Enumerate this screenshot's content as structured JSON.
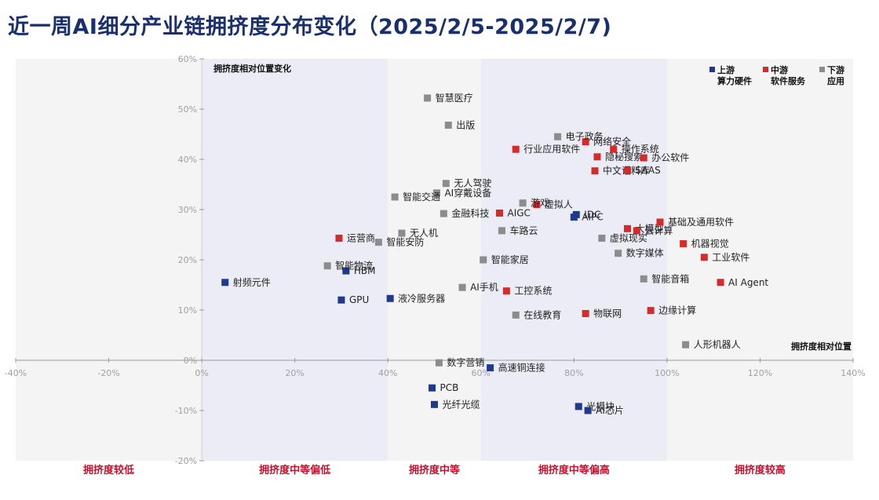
{
  "title": "近一周AI细分产业链拥挤度分布变化（2025/2/5-2025/2/7)",
  "colors": {
    "upstream": "#1f3a8a",
    "midstream": "#d62b2b",
    "downstream": "#8c8c8c",
    "zone_tint": "#ececf6",
    "zone_plain": "#f4f4f4"
  },
  "chart_data": {
    "type": "scatter",
    "title": "",
    "ylabel": "拥挤度相对位置变化",
    "xlabel": "拥挤度相对位置",
    "xlim": [
      -40,
      140
    ],
    "ylim": [
      -20,
      60
    ],
    "unit": "%",
    "x_ticks": [
      "-40%",
      "-20%",
      "0%",
      "20%",
      "40%",
      "60%",
      "80%",
      "100%",
      "120%",
      "140%"
    ],
    "y_ticks": [
      "60%",
      "50%",
      "40%",
      "30%",
      "20%",
      "10%",
      "0%",
      "-10%",
      "-20%"
    ],
    "legend_position": "top-right",
    "legend": [
      {
        "key": "upstream",
        "line1": "上游",
        "line2": "算力硬件"
      },
      {
        "key": "midstream",
        "line1": "中游",
        "line2": "软件服务"
      },
      {
        "key": "downstream",
        "line1": "下游",
        "line2": "应用"
      }
    ],
    "zones": [
      {
        "label": "拥挤度较低",
        "from": -40,
        "to": 0,
        "tint": false
      },
      {
        "label": "拥挤度中等偏低",
        "from": 0,
        "to": 40,
        "tint": true
      },
      {
        "label": "拥挤度中等",
        "from": 40,
        "to": 60,
        "tint": false
      },
      {
        "label": "拥挤度中等偏高",
        "from": 60,
        "to": 100,
        "tint": true
      },
      {
        "label": "拥挤度较高",
        "from": 100,
        "to": 140,
        "tint": false
      }
    ],
    "series": [
      {
        "key": "upstream",
        "name": "上游 算力硬件",
        "points": [
          {
            "name": "射频元件",
            "x": 5,
            "y": 15.5
          },
          {
            "name": "HBM",
            "x": 31,
            "y": 17.8
          },
          {
            "name": "GPU",
            "x": 30,
            "y": 12
          },
          {
            "name": "液冷服务器",
            "x": 40.5,
            "y": 12.3
          },
          {
            "name": "IDC",
            "x": 80.5,
            "y": 29
          },
          {
            "name": "AIPC",
            "x": 80,
            "y": 28.5
          },
          {
            "name": "高速铜连接",
            "x": 62,
            "y": -1.5
          },
          {
            "name": "PCB",
            "x": 49.5,
            "y": -5.5
          },
          {
            "name": "光纤光缆",
            "x": 50,
            "y": -8.8
          },
          {
            "name": "光模块",
            "x": 81,
            "y": -9.2
          },
          {
            "name": "AI芯片",
            "x": 83,
            "y": -10
          }
        ]
      },
      {
        "key": "midstream",
        "name": "中游 软件服务",
        "points": [
          {
            "name": "网络安全",
            "x": 82.5,
            "y": 43.5
          },
          {
            "name": "操作系统",
            "x": 88.5,
            "y": 42
          },
          {
            "name": "行业应用软件",
            "x": 67.5,
            "y": 42
          },
          {
            "name": "隐秘搜索",
            "x": 85,
            "y": 40.5
          },
          {
            "name": "办公软件",
            "x": 95,
            "y": 40.3
          },
          {
            "name": "中文语料库",
            "x": 84.5,
            "y": 37.7
          },
          {
            "name": "SAAS",
            "x": 91.5,
            "y": 37.8
          },
          {
            "name": "虚拟人",
            "x": 72,
            "y": 31
          },
          {
            "name": "AIGC",
            "x": 64,
            "y": 29.3
          },
          {
            "name": "大模型",
            "x": 91.5,
            "y": 26.2
          },
          {
            "name": "基础及通用软件",
            "x": 98.5,
            "y": 27.5
          },
          {
            "name": "云计算",
            "x": 93.5,
            "y": 25.8
          },
          {
            "name": "运营商",
            "x": 29.5,
            "y": 24.3
          },
          {
            "name": "机器视觉",
            "x": 103.5,
            "y": 23.2
          },
          {
            "name": "工业软件",
            "x": 108,
            "y": 20.5
          },
          {
            "name": "AI Agent",
            "x": 111.5,
            "y": 15.5
          },
          {
            "name": "工控系统",
            "x": 65.5,
            "y": 13.8
          },
          {
            "name": "物联网",
            "x": 82.5,
            "y": 9.3
          },
          {
            "name": "边缘计算",
            "x": 96.5,
            "y": 9.9
          }
        ]
      },
      {
        "key": "downstream",
        "name": "下游 应用",
        "points": [
          {
            "name": "智慧医疗",
            "x": 48.5,
            "y": 52.2
          },
          {
            "name": "出版",
            "x": 53,
            "y": 46.8
          },
          {
            "name": "电子政务",
            "x": 76.5,
            "y": 44.5
          },
          {
            "name": "无人驾驶",
            "x": 52.5,
            "y": 35.2
          },
          {
            "name": "AI穿戴设备",
            "x": 50.5,
            "y": 33.3
          },
          {
            "name": "智能交通",
            "x": 41.5,
            "y": 32.5
          },
          {
            "name": "游戏",
            "x": 69,
            "y": 31.3
          },
          {
            "name": "金融科技",
            "x": 52,
            "y": 29.2
          },
          {
            "name": "无人机",
            "x": 43,
            "y": 25.3
          },
          {
            "name": "车路云",
            "x": 64.5,
            "y": 25.8
          },
          {
            "name": "智能安防",
            "x": 38,
            "y": 23.5
          },
          {
            "name": "虚拟现实",
            "x": 86,
            "y": 24.3
          },
          {
            "name": "数字媒体",
            "x": 89.5,
            "y": 21.3
          },
          {
            "name": "智能物流",
            "x": 27,
            "y": 18.8
          },
          {
            "name": "智能家居",
            "x": 60.5,
            "y": 20
          },
          {
            "name": "智能音箱",
            "x": 95,
            "y": 16.2
          },
          {
            "name": "AI手机",
            "x": 56,
            "y": 14.5
          },
          {
            "name": "在线教育",
            "x": 67.5,
            "y": 9
          },
          {
            "name": "人形机器人",
            "x": 104,
            "y": 3.1
          },
          {
            "name": "数字营销",
            "x": 51,
            "y": -0.5
          }
        ]
      }
    ]
  }
}
